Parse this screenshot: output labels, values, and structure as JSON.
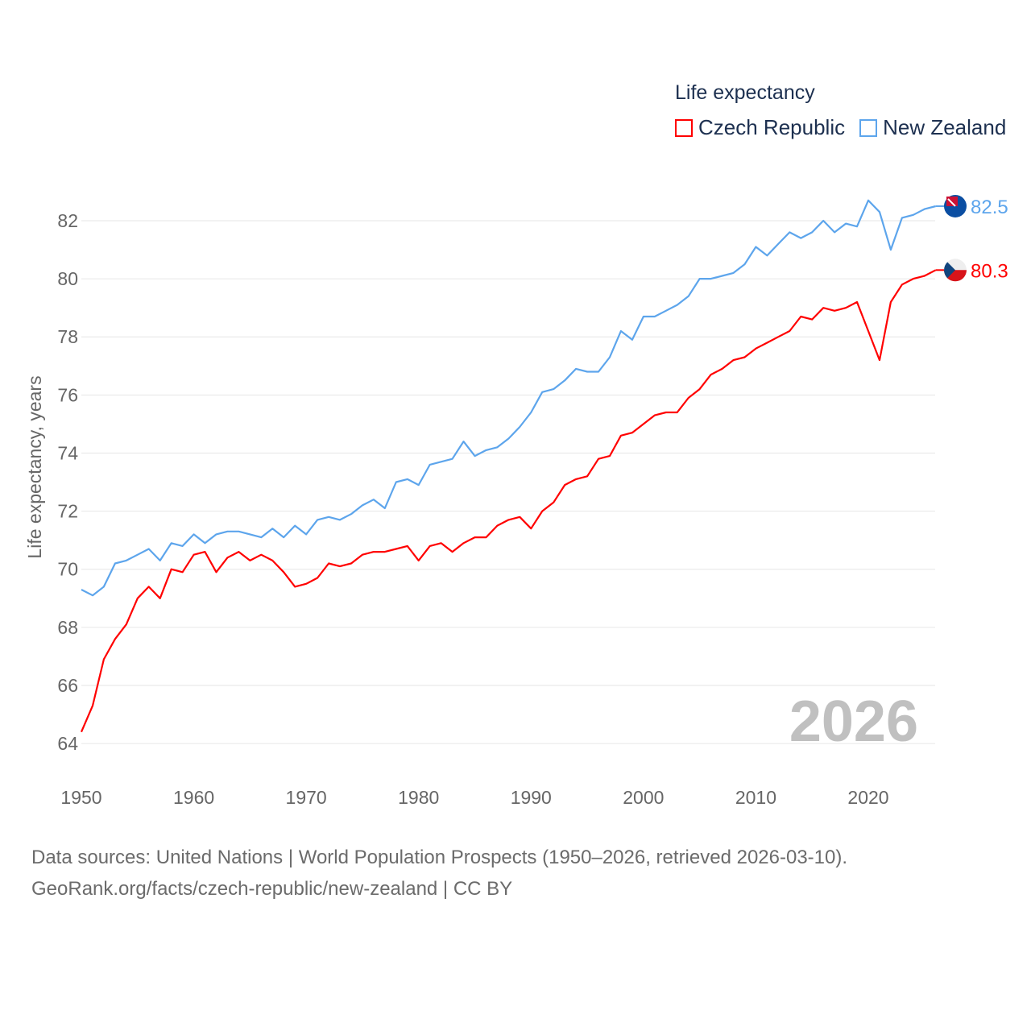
{
  "chart_data": {
    "type": "line",
    "title": "Life expectancy",
    "ylabel": "Life expectancy, years",
    "xlabel": "",
    "xlim": [
      1950,
      2026
    ],
    "ylim": [
      63,
      83.5
    ],
    "grid": true,
    "legend_position": "top-right",
    "x_ticks": [
      1950,
      1960,
      1970,
      1980,
      1990,
      2000,
      2010,
      2020
    ],
    "y_ticks": [
      64,
      66,
      68,
      70,
      72,
      74,
      76,
      78,
      80,
      82
    ],
    "watermark_year": "2026",
    "x": [
      1950,
      1951,
      1952,
      1953,
      1954,
      1955,
      1956,
      1957,
      1958,
      1959,
      1960,
      1961,
      1962,
      1963,
      1964,
      1965,
      1966,
      1967,
      1968,
      1969,
      1970,
      1971,
      1972,
      1973,
      1974,
      1975,
      1976,
      1977,
      1978,
      1979,
      1980,
      1981,
      1982,
      1983,
      1984,
      1985,
      1986,
      1987,
      1988,
      1989,
      1990,
      1991,
      1992,
      1993,
      1994,
      1995,
      1996,
      1997,
      1998,
      1999,
      2000,
      2001,
      2002,
      2003,
      2004,
      2005,
      2006,
      2007,
      2008,
      2009,
      2010,
      2011,
      2012,
      2013,
      2014,
      2015,
      2016,
      2017,
      2018,
      2019,
      2020,
      2021,
      2022,
      2023,
      2024,
      2025,
      2026
    ],
    "series": [
      {
        "name": "Czech Republic",
        "color": "#ff0000",
        "end_label": "80.3",
        "values": [
          64.4,
          65.3,
          66.9,
          67.6,
          68.1,
          69.0,
          69.4,
          69.0,
          70.0,
          69.9,
          70.5,
          70.6,
          69.9,
          70.4,
          70.6,
          70.3,
          70.5,
          70.3,
          69.9,
          69.4,
          69.5,
          69.7,
          70.2,
          70.1,
          70.2,
          70.5,
          70.6,
          70.6,
          70.7,
          70.8,
          70.3,
          70.8,
          70.9,
          70.6,
          70.9,
          71.1,
          71.1,
          71.5,
          71.7,
          71.8,
          71.4,
          72.0,
          72.3,
          72.9,
          73.1,
          73.2,
          73.8,
          73.9,
          74.6,
          74.7,
          75.0,
          75.3,
          75.4,
          75.4,
          75.9,
          76.2,
          76.7,
          76.9,
          77.2,
          77.3,
          77.6,
          77.8,
          78.0,
          78.2,
          78.7,
          78.6,
          79.0,
          78.9,
          79.0,
          79.2,
          78.2,
          77.2,
          79.2,
          79.8,
          80.0,
          80.1,
          80.3
        ]
      },
      {
        "name": "New Zealand",
        "color": "#5da5ec",
        "end_label": "82.5",
        "values": [
          69.3,
          69.1,
          69.4,
          70.2,
          70.3,
          70.5,
          70.7,
          70.3,
          70.9,
          70.8,
          71.2,
          70.9,
          71.2,
          71.3,
          71.3,
          71.2,
          71.1,
          71.4,
          71.1,
          71.5,
          71.2,
          71.7,
          71.8,
          71.7,
          71.9,
          72.2,
          72.4,
          72.1,
          73.0,
          73.1,
          72.9,
          73.6,
          73.7,
          73.8,
          74.4,
          73.9,
          74.1,
          74.2,
          74.5,
          74.9,
          75.4,
          76.1,
          76.2,
          76.5,
          76.9,
          76.8,
          76.8,
          77.3,
          78.2,
          77.9,
          78.7,
          78.7,
          78.9,
          79.1,
          79.4,
          80.0,
          80.0,
          80.1,
          80.2,
          80.5,
          81.1,
          80.8,
          81.2,
          81.6,
          81.4,
          81.6,
          82.0,
          81.6,
          81.9,
          81.8,
          82.7,
          82.3,
          81.0,
          82.1,
          82.2,
          82.4,
          82.5
        ]
      }
    ]
  },
  "footer": {
    "line1": "Data sources: United Nations | World Population Prospects (1950–2026, retrieved 2026-03-10).",
    "line2": "GeoRank.org/facts/czech-republic/new-zealand | CC BY"
  }
}
